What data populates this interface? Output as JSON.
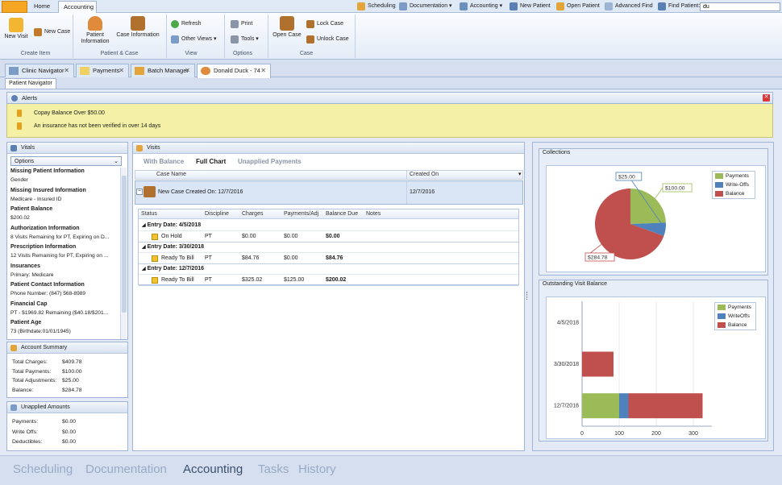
{
  "colors": {
    "payments": "#9bbb59",
    "writeoffs": "#4f81bd",
    "balance": "#c0504d",
    "accent": "#f5a623"
  },
  "top": {
    "app_button": "",
    "tabs": [
      "Home",
      "Accounting"
    ],
    "quick": [
      "Scheduling",
      "Documentation",
      "Accounting",
      "New Patient",
      "Open Patient",
      "Advanced Find",
      "Find Patient:"
    ],
    "find_value": "du"
  },
  "ribbon": {
    "new_visit": "New Visit",
    "new_case": "New Case",
    "group_create": "Create Item",
    "patient_info": "Patient Information",
    "case_info": "Case Information",
    "group_patient_case": "Patient & Case",
    "refresh": "Refresh",
    "other_views": "Other Views",
    "group_view": "View",
    "print": "Print",
    "tools": "Tools",
    "group_options": "Options",
    "open_case": "Open Case",
    "lock_case": "Lock Case",
    "unlock_case": "Unlock Case",
    "group_case": "Case"
  },
  "doctabs": [
    "Clinic Navigator",
    "Payments",
    "Batch Manager",
    "Donald  Duck - 74"
  ],
  "patient_nav_tab": "Patient Navigator",
  "alerts": {
    "title": "Alerts",
    "items": [
      "Copay Balance Over $50.00",
      "An insurance has not been verified in over 14 days"
    ]
  },
  "vitals": {
    "title": "Vitals",
    "options": "Options",
    "items": [
      {
        "h": "Missing Patient Information",
        "v": "Gender"
      },
      {
        "h": "Missing Insured Information",
        "v": "Medicare - Insured ID"
      },
      {
        "h": "Patient Balance",
        "v": "$200.02"
      },
      {
        "h": "Authorization Information",
        "v": "8 Visits Remaining for PT, Expiring on D..."
      },
      {
        "h": "Prescription Information",
        "v": "12 Visits Remaining for PT, Expiring on ..."
      },
      {
        "h": "Insurances",
        "v": "Primary: Medicare"
      },
      {
        "h": "Patient Contact Information",
        "v": "Phone Number:  (847) 568-8989"
      },
      {
        "h": "Financial Cap",
        "v": "PT - $1969.82 Remaining ($40.18/$201..."
      },
      {
        "h": "Patient Age",
        "v": "73  (Birthdate:01/01/1945)"
      }
    ]
  },
  "account_summary": {
    "title": "Account Summary",
    "rows": [
      {
        "l": "Total Charges:",
        "v": "$409.78"
      },
      {
        "l": "Total Payments:",
        "v": "$100.00"
      },
      {
        "l": "Total Adjustments:",
        "v": "$25.00"
      },
      {
        "l": "Balance:",
        "v": "$284.78"
      }
    ]
  },
  "unapplied": {
    "title": "Unapplied Amounts",
    "rows": [
      {
        "l": "Payments:",
        "v": "$0.00"
      },
      {
        "l": "Write Offs:",
        "v": "$0.00"
      },
      {
        "l": "Deductibles:",
        "v": "$0.00"
      }
    ]
  },
  "visits": {
    "title": "Visits",
    "filters": [
      "With Balance",
      "Full Chart",
      "Unapplied Payments"
    ],
    "case_cols": [
      "Case Name",
      "Created On"
    ],
    "case_row": {
      "name": "New Case Created On: 12/7/2016",
      "created": "12/7/2016"
    },
    "cols": [
      "Status",
      "Discipline",
      "Charges",
      "Payments/Adj",
      "Balance Due",
      "Notes"
    ],
    "entries": [
      {
        "date": "Entry Date: 4/5/2018",
        "status": "On Hold",
        "disc": "PT",
        "charges": "$0.00",
        "pay": "$0.00",
        "bal": "$0.00"
      },
      {
        "date": "Entry Date: 3/30/2018",
        "status": "Ready To Bill",
        "disc": "PT",
        "charges": "$84.76",
        "pay": "$0.00",
        "bal": "$84.76"
      },
      {
        "date": "Entry Date: 12/7/2016",
        "status": "Ready To Bill",
        "disc": "PT",
        "charges": "$325.02",
        "pay": "$125.00",
        "bal": "$200.02"
      }
    ]
  },
  "collections_title": "Collections",
  "outstanding_title": "Outstanding Visit Balance",
  "chart_data": [
    {
      "type": "pie",
      "series": [
        {
          "name": "Payments",
          "value": 100.0,
          "label": "$100.00"
        },
        {
          "name": "Write-Offs",
          "value": 25.0,
          "label": "$25.00"
        },
        {
          "name": "Balance",
          "value": 284.78,
          "label": "$284.78"
        }
      ],
      "legend": "top-right"
    },
    {
      "type": "bar",
      "orientation": "horizontal",
      "stacked": true,
      "categories": [
        "4/5/2018",
        "3/30/2018",
        "12/7/2016"
      ],
      "series": [
        {
          "name": "Payments",
          "values": [
            0,
            0,
            100
          ]
        },
        {
          "name": "WriteOffs",
          "values": [
            0,
            0,
            25
          ]
        },
        {
          "name": "Balance",
          "values": [
            0,
            84.76,
            200.02
          ]
        }
      ],
      "xticks": [
        "0",
        "100",
        "200",
        "300"
      ],
      "xlim": [
        0,
        350
      ],
      "grid": true,
      "legend": "top-right"
    }
  ],
  "bottom_nav": [
    "Scheduling",
    "Documentation",
    "Accounting",
    "Tasks",
    "History"
  ]
}
